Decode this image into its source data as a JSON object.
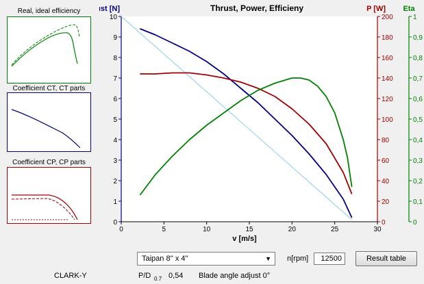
{
  "thumbnails": [
    {
      "title": "Real, ideal efficiency",
      "frame_color": "#008000"
    },
    {
      "title": "Coefficient CT, CT parts",
      "frame_color": "#000080"
    },
    {
      "title": "Coefficient CP, CP parts",
      "frame_color": "#a00000"
    }
  ],
  "chart": {
    "title": "Thrust, Power, Efficieny",
    "left_axis_title": "Thrust [N]",
    "right_axis_title": "P [W]",
    "far_right_axis_title": "Eta",
    "x_axis_title": "v [m/s]",
    "x_ticks": [
      "0",
      "5",
      "10",
      "15",
      "20",
      "25",
      "30"
    ],
    "left_ticks": [
      "0",
      "1",
      "2",
      "3",
      "4",
      "5",
      "6",
      "7",
      "8",
      "9",
      "10"
    ],
    "right_ticks": [
      "0",
      "20",
      "40",
      "60",
      "80",
      "100",
      "120",
      "140",
      "160",
      "180",
      "200"
    ],
    "far_right_ticks": [
      "0",
      "0,1",
      "0,2",
      "0,3",
      "0,4",
      "0,5",
      "0,6",
      "0,7",
      "0,8",
      "0,9",
      "1"
    ]
  },
  "chart_data": {
    "type": "line",
    "title": "Thrust, Power, Efficieny",
    "xlabel": "v [m/s]",
    "xlim": [
      0,
      30
    ],
    "grid": false,
    "axes": [
      {
        "name": "Thrust [N]",
        "side": "left",
        "lim": [
          0,
          10
        ],
        "color": "#000080"
      },
      {
        "name": "P [W]",
        "side": "right",
        "lim": [
          0,
          200
        ],
        "color": "#a00000"
      },
      {
        "name": "Eta",
        "side": "far-right",
        "lim": [
          0,
          1
        ],
        "color": "#008000"
      }
    ],
    "series": [
      {
        "axis": "left",
        "color": "#000080",
        "x": [
          2.2,
          4,
          6,
          8,
          10,
          12,
          14,
          16,
          18,
          20,
          22,
          24,
          26,
          27
        ],
        "y": [
          9.4,
          9.1,
          8.7,
          8.3,
          7.8,
          7.2,
          6.5,
          5.8,
          5.0,
          4.2,
          3.3,
          2.3,
          1.1,
          0.2
        ]
      },
      {
        "axis": "left",
        "color": "#87ceeb",
        "x": [
          0,
          27
        ],
        "y": [
          10,
          0.1
        ]
      },
      {
        "axis": "right",
        "color": "#a00000",
        "x": [
          2.2,
          4,
          6,
          8,
          10,
          12,
          14,
          16,
          18,
          20,
          22,
          24,
          26,
          27
        ],
        "y": [
          144,
          144,
          145,
          145,
          143,
          140,
          136,
          130,
          122,
          110,
          95,
          76,
          48,
          27
        ]
      },
      {
        "axis": "far-right",
        "color": "#008000",
        "x": [
          2.2,
          4,
          6,
          8,
          10,
          12,
          14,
          16,
          18,
          20,
          21,
          22,
          23,
          24,
          25,
          26,
          26.5,
          27
        ],
        "y": [
          0.13,
          0.23,
          0.32,
          0.4,
          0.47,
          0.53,
          0.59,
          0.64,
          0.675,
          0.7,
          0.7,
          0.69,
          0.66,
          0.61,
          0.53,
          0.4,
          0.31,
          0.17
        ]
      }
    ]
  },
  "controls": {
    "propeller_select": "Taipan 8'' x 4''",
    "rpm_label": "n[rpm]",
    "rpm_value": "12500",
    "result_button": "Result table",
    "airfoil": "CLARK-Y",
    "pd_label": "P/D",
    "pd_sub": "0.7",
    "pd_value": "0,54",
    "blade_angle": "Blade angle adjust 0°"
  }
}
